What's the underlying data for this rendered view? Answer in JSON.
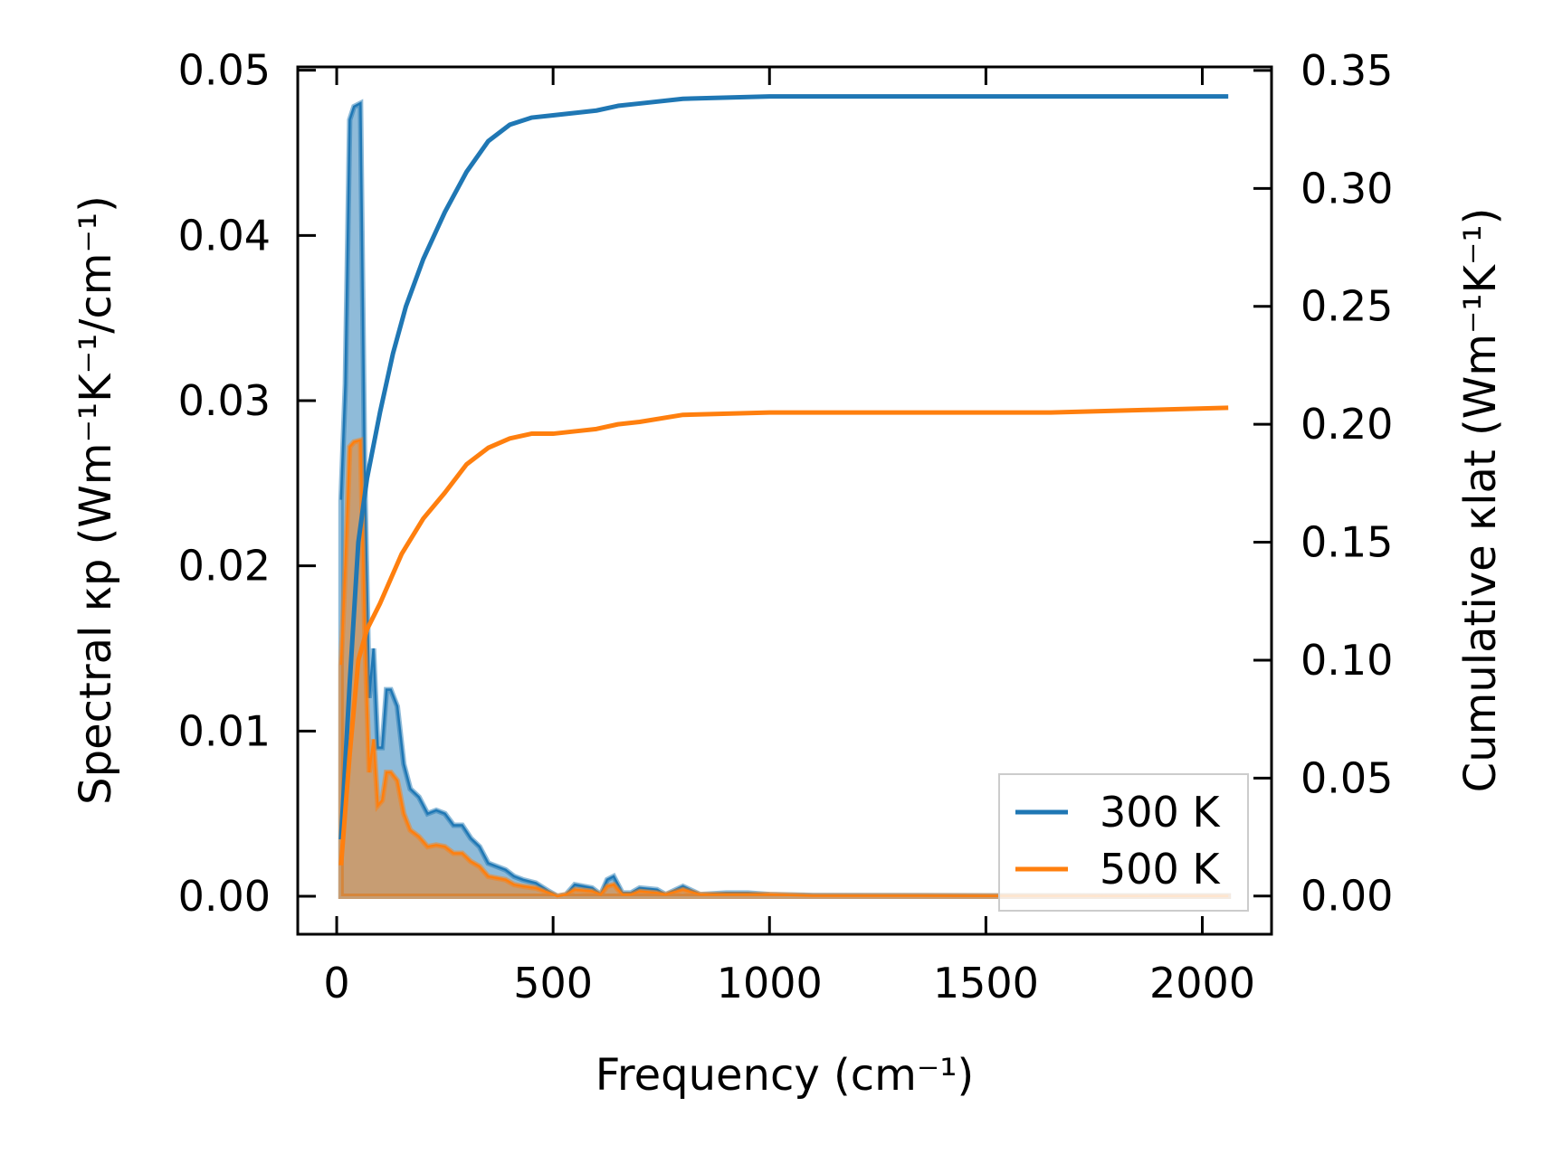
{
  "chart_data": {
    "type": "line",
    "title": "",
    "xlabel": "Frequency (cm⁻¹)",
    "ylabel_left": "Spectral κp (Wm⁻¹K⁻¹/cm⁻¹)",
    "ylabel_right": "Cumulative κlat (Wm⁻¹K⁻¹)",
    "xlim": [
      -90,
      2160
    ],
    "ylim_left": [
      -0.0023,
      0.0502
    ],
    "ylim_right": [
      -0.0162,
      0.3515
    ],
    "xticks": [
      0,
      500,
      1000,
      1500,
      2000
    ],
    "xtick_labels": [
      "0",
      "500",
      "1000",
      "1500",
      "2000"
    ],
    "yticks_left": [
      0,
      0.01,
      0.02,
      0.03,
      0.04,
      0.05
    ],
    "ytick_labels_left": [
      "0.00",
      "0.01",
      "0.02",
      "0.03",
      "0.04",
      "0.05"
    ],
    "yticks_right": [
      0,
      0.05,
      0.1,
      0.15,
      0.2,
      0.25,
      0.3,
      0.35
    ],
    "ytick_labels_right": [
      "0.00",
      "0.05",
      "0.10",
      "0.15",
      "0.20",
      "0.25",
      "0.30",
      "0.35"
    ],
    "legend": {
      "placement": "lower-right",
      "entries": [
        "300 K",
        "500 K"
      ]
    },
    "colors": {
      "300 K": "#1f77b4",
      "500 K": "#ff7f0e"
    },
    "spectral": [
      {
        "name": "300 K",
        "x": [
          10,
          20,
          30,
          40,
          55,
          65,
          75,
          85,
          95,
          105,
          115,
          125,
          140,
          155,
          170,
          190,
          210,
          230,
          250,
          270,
          290,
          310,
          330,
          350,
          370,
          390,
          410,
          430,
          460,
          490,
          510,
          530,
          550,
          590,
          610,
          625,
          640,
          660,
          680,
          700,
          740,
          760,
          800,
          840,
          900,
          950,
          1000,
          1100,
          1500,
          2060
        ],
        "y": [
          0.024,
          0.031,
          0.047,
          0.0478,
          0.048,
          0.025,
          0.012,
          0.015,
          0.009,
          0.009,
          0.0125,
          0.0125,
          0.0115,
          0.008,
          0.0065,
          0.006,
          0.005,
          0.0052,
          0.005,
          0.0043,
          0.0043,
          0.0035,
          0.003,
          0.002,
          0.0018,
          0.0016,
          0.0012,
          0.001,
          0.0008,
          0.0003,
          0,
          0.0001,
          0.0007,
          0.0005,
          0.0001,
          0.001,
          0.0012,
          0.0002,
          0.0002,
          0.0005,
          0.0004,
          0.0001,
          0.0006,
          0.0001,
          0.0002,
          0.0002,
          0.0001,
          5e-05,
          3e-05,
          2e-05
        ]
      },
      {
        "name": "500 K",
        "x": [
          10,
          20,
          30,
          40,
          55,
          65,
          75,
          85,
          95,
          105,
          115,
          125,
          140,
          155,
          170,
          190,
          210,
          230,
          250,
          270,
          290,
          310,
          330,
          350,
          370,
          390,
          410,
          430,
          460,
          490,
          510,
          530,
          550,
          590,
          610,
          625,
          640,
          660,
          680,
          700,
          740,
          760,
          800,
          840,
          900,
          950,
          1000,
          1100,
          1500,
          2060
        ],
        "y": [
          0.014,
          0.02,
          0.0272,
          0.0275,
          0.0276,
          0.016,
          0.0075,
          0.0095,
          0.0055,
          0.0058,
          0.0075,
          0.0075,
          0.007,
          0.005,
          0.004,
          0.0036,
          0.003,
          0.0031,
          0.003,
          0.0026,
          0.0026,
          0.0021,
          0.0018,
          0.0012,
          0.0011,
          0.001,
          0.0007,
          0.0006,
          0.0005,
          0.0002,
          0,
          0.0001,
          0.0004,
          0.0003,
          0.0001,
          0.0006,
          0.0007,
          0.0001,
          0.0001,
          0.0003,
          0.0002,
          0.0001,
          0.0004,
          0.0001,
          0.0001,
          0.0001,
          0.0001,
          3e-05,
          2e-05,
          1e-05
        ]
      }
    ],
    "cumulative": [
      {
        "name": "300 K",
        "x": [
          10,
          30,
          50,
          70,
          100,
          130,
          160,
          200,
          250,
          300,
          350,
          400,
          450,
          500,
          550,
          600,
          650,
          700,
          800,
          1000,
          1500,
          2060
        ],
        "y": [
          0.024,
          0.09,
          0.15,
          0.177,
          0.205,
          0.23,
          0.25,
          0.27,
          0.29,
          0.307,
          0.32,
          0.327,
          0.33,
          0.331,
          0.332,
          0.333,
          0.335,
          0.336,
          0.338,
          0.339,
          0.339,
          0.339
        ]
      },
      {
        "name": "500 K",
        "x": [
          10,
          30,
          50,
          70,
          100,
          150,
          200,
          250,
          300,
          350,
          400,
          450,
          500,
          550,
          600,
          650,
          700,
          800,
          1000,
          1650,
          2060
        ],
        "y": [
          0.013,
          0.06,
          0.1,
          0.113,
          0.124,
          0.145,
          0.16,
          0.171,
          0.183,
          0.19,
          0.194,
          0.196,
          0.196,
          0.197,
          0.198,
          0.2,
          0.201,
          0.204,
          0.205,
          0.205,
          0.207
        ]
      }
    ]
  }
}
